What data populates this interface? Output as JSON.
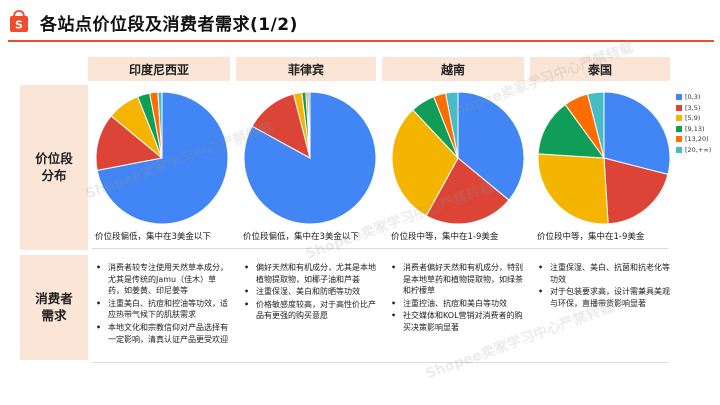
{
  "title": "各站点价位段及消费者需求(1/2)",
  "columns": [
    "印度尼西亚",
    "菲律宾",
    "越南",
    "泰国"
  ],
  "row_labels": {
    "price_distribution": "价位段\n分布",
    "consumer_needs": "消费者\n需求"
  },
  "colors": {
    "accent": "#ee4d2d",
    "header_bg": "#fbe5d6",
    "series": [
      "#4285f4",
      "#db4437",
      "#f4b400",
      "#0f9d58",
      "#ff6d01",
      "#46bdc6"
    ]
  },
  "chart_data": [
    {
      "type": "pie",
      "title": "印度尼西亚",
      "labels": [
        "[0,3)",
        "[3,5)",
        "[5,9)",
        "[9,13)",
        "[13,20)",
        "[20,+∞)"
      ],
      "values": [
        72,
        14,
        8,
        3,
        2,
        1
      ]
    },
    {
      "type": "pie",
      "title": "菲律宾",
      "labels": [
        "[0,3)",
        "[3,5)",
        "[5,9)",
        "[9,13)",
        "[13,20)",
        "[20,+∞)"
      ],
      "values": [
        83,
        13,
        2,
        1,
        0.5,
        0.5
      ]
    },
    {
      "type": "pie",
      "title": "越南",
      "labels": [
        "[0,3)",
        "[3,5)",
        "[5,9)",
        "[9,13)",
        "[13,20)",
        "[20,+∞)"
      ],
      "values": [
        36,
        22,
        30,
        6,
        3,
        3
      ]
    },
    {
      "type": "pie",
      "title": "泰国",
      "labels": [
        "[0,3)",
        "[3,5)",
        "[5,9)",
        "[9,13)",
        "[13,20)",
        "[20,+∞)"
      ],
      "values": [
        29,
        20,
        27,
        14,
        6,
        4
      ]
    }
  ],
  "legend": [
    "[0,3)",
    "[3,5)",
    "[5,9)",
    "[9,13)",
    "[13,20)",
    "[20,+∞)"
  ],
  "summaries": [
    "价位段偏低，集中在3美金以下",
    "价位段偏低，集中在3美金以下",
    "价位段中等，集中在1-9美金",
    "价位段中等，集中在1-9美金"
  ],
  "consumer_needs": [
    [
      "消费者较专注使用天然草本成分，尤其是传统的Jamu（佳木）草药，如姜黄、印尼姜等",
      "注重美白、抗痘和控油等功效，适应热带气候下的肌肤需求",
      "本地文化和宗教信仰对产品选择有一定影响，清真认证产品更受欢迎"
    ],
    [
      "偏好天然和有机成分，尤其是本地植物提取物，如椰子油和芦荟",
      "注重保湿、美白和防晒等功效",
      "价格敏感度较高，对于高性价比产品有更强的购买意愿"
    ],
    [
      "消费者偏好天然和有机成分，特别是本地草药和植物提取物，如绿茶和柠檬草",
      "注重控油、抗痘和美白等功效",
      "社交媒体和KOL营销对消费者的购买决策影响显著"
    ],
    [
      "注重保湿、美白、抗菌和抗老化等功效",
      "对于包装要求高，设计需兼具美观与环保，直播带货影响显著"
    ]
  ],
  "watermark": "Shopee卖家学习中心严禁转载"
}
